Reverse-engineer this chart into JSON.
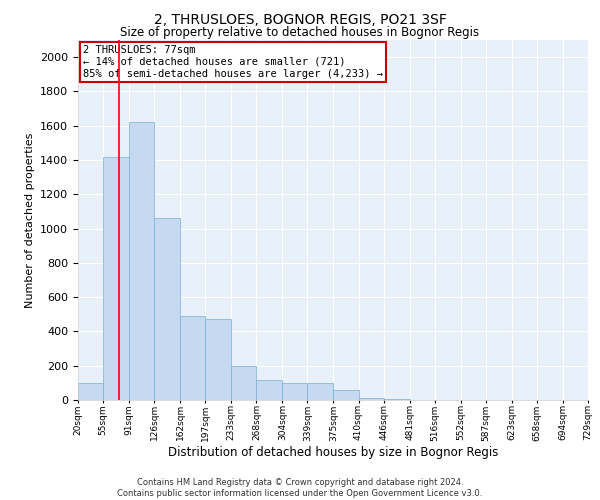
{
  "title": "2, THRUSLOES, BOGNOR REGIS, PO21 3SF",
  "subtitle": "Size of property relative to detached houses in Bognor Regis",
  "xlabel": "Distribution of detached houses by size in Bognor Regis",
  "ylabel": "Number of detached properties",
  "footer_line1": "Contains HM Land Registry data © Crown copyright and database right 2024.",
  "footer_line2": "Contains public sector information licensed under the Open Government Licence v3.0.",
  "bin_edges": [
    20,
    55,
    91,
    126,
    162,
    197,
    233,
    268,
    304,
    339,
    375,
    410,
    446,
    481,
    516,
    552,
    587,
    623,
    658,
    694,
    729
  ],
  "bar_heights": [
    100,
    1420,
    1620,
    1060,
    490,
    470,
    200,
    115,
    100,
    100,
    60,
    10,
    5,
    2,
    2,
    2,
    1,
    1,
    1,
    1
  ],
  "bar_color": "#c5d9f1",
  "bar_edge_color": "#7bafd4",
  "background_color": "#e8f0fa",
  "grid_color": "#ffffff",
  "red_line_x": 77,
  "annotation_text": "2 THRUSLOES: 77sqm\n← 14% of detached houses are smaller (721)\n85% of semi-detached houses are larger (4,233) →",
  "annotation_box_color": "#ffffff",
  "annotation_box_edge_color": "#cc0000",
  "ylim": [
    0,
    2100
  ],
  "yticks": [
    0,
    200,
    400,
    600,
    800,
    1000,
    1200,
    1400,
    1600,
    1800,
    2000
  ],
  "title_fontsize": 10,
  "subtitle_fontsize": 8.5,
  "ylabel_fontsize": 8,
  "xlabel_fontsize": 8.5,
  "footer_fontsize": 6,
  "annot_fontsize": 7.5,
  "ytick_fontsize": 8,
  "xtick_fontsize": 6.5
}
